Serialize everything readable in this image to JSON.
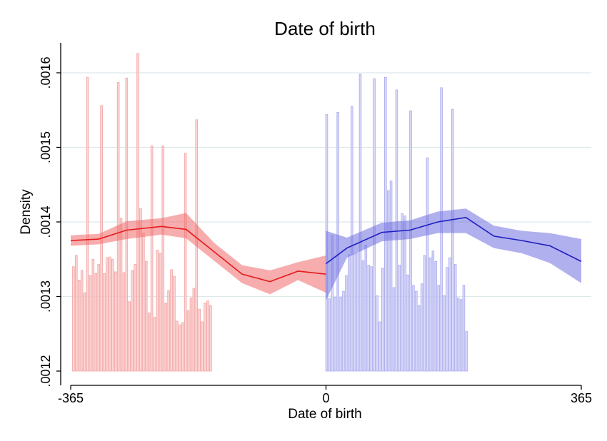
{
  "chart_data": {
    "type": "bar",
    "title": "Date of birth",
    "xlabel": "Date of birth",
    "ylabel": "Density",
    "xlim": [
      -365,
      365
    ],
    "ylim": [
      0.0012,
      0.00162
    ],
    "x_ticks": [
      {
        "value": -365,
        "label": "-365"
      },
      {
        "value": 0,
        "label": "0"
      },
      {
        "value": 365,
        "label": "365"
      }
    ],
    "y_ticks": [
      {
        "value": 0.0012,
        "label": ".0012"
      },
      {
        "value": 0.0013,
        "label": ".0013"
      },
      {
        "value": 0.0014,
        "label": ".0014"
      },
      {
        "value": 0.0015,
        "label": ".0015"
      },
      {
        "value": 0.0016,
        "label": ".0016"
      }
    ],
    "grid": true,
    "legend": "none",
    "colors": {
      "left_bar_fill": "#fbd0d0",
      "left_bar_stroke": "#f3a0a0",
      "left_line": "#e41a1c",
      "left_band": "#f06a6a",
      "right_bar_fill": "#d3d3f7",
      "right_bar_stroke": "#a9a9ee",
      "right_line": "#1d1dbf",
      "right_band": "#6f6fe0",
      "grid": "#dde8ec"
    },
    "histogram": {
      "bin_width": 4,
      "left_start": -361,
      "left_values": [
        0.00134,
        0.001355,
        0.001322,
        0.001335,
        0.001305,
        0.001594,
        0.001328,
        0.00135,
        0.001331,
        0.001343,
        0.001556,
        0.001331,
        0.001352,
        0.001353,
        0.00135,
        0.001333,
        0.001587,
        0.001405,
        0.001332,
        0.001593,
        0.001293,
        0.001335,
        0.001343,
        0.001626,
        0.001418,
        0.001385,
        0.001347,
        0.001278,
        0.001502,
        0.001272,
        0.001362,
        0.001358,
        0.001502,
        0.001291,
        0.001308,
        0.001336,
        0.001327,
        0.001267,
        0.001262,
        0.001265,
        0.001492,
        0.001281,
        0.001298,
        0.001311,
        0.001537,
        0.001283,
        0.001266,
        0.001291,
        0.001294,
        0.001288
      ],
      "right_start": 1,
      "right_values": [
        0.001544,
        0.001297,
        0.001382,
        0.001299,
        0.001547,
        0.001299,
        0.001307,
        0.001328,
        0.001356,
        0.001555,
        0.001357,
        0.001358,
        0.001598,
        0.001348,
        0.001369,
        0.001342,
        0.00134,
        0.001592,
        0.001301,
        0.001266,
        0.001338,
        0.001594,
        0.001442,
        0.001455,
        0.001312,
        0.001577,
        0.001342,
        0.001411,
        0.001408,
        0.001329,
        0.001549,
        0.001315,
        0.001307,
        0.001288,
        0.001317,
        0.001355,
        0.001486,
        0.001352,
        0.001361,
        0.001347,
        0.001315,
        0.00158,
        0.001301,
        0.001339,
        0.001352,
        0.001551,
        0.001343,
        0.001298,
        0.001296,
        0.001315,
        0.001253
      ]
    },
    "series": [
      {
        "x": [
          -365,
          -325,
          -285,
          -235,
          -200,
          -160,
          -120,
          -80,
          -40,
          0
        ],
        "y": [
          0.001375,
          0.001377,
          0.001389,
          0.001394,
          0.00139,
          0.00136,
          0.00133,
          0.00132,
          0.001334,
          0.00133
        ],
        "ci_low": [
          0.001368,
          0.00137,
          0.001377,
          0.001383,
          0.001378,
          0.001348,
          0.001318,
          0.001303,
          0.001322,
          0.001305
        ],
        "ci_high": [
          0.001382,
          0.001384,
          0.001401,
          0.001405,
          0.001412,
          0.001372,
          0.001342,
          0.001335,
          0.001346,
          0.001355
        ]
      },
      {
        "x": [
          0,
          30,
          80,
          120,
          160,
          200,
          240,
          280,
          320,
          365
        ],
        "y": [
          0.001344,
          0.001365,
          0.001386,
          0.001389,
          0.0014,
          0.001406,
          0.001381,
          0.001375,
          0.001368,
          0.001347
        ],
        "ci_low": [
          0.001295,
          0.001352,
          0.001374,
          0.001377,
          0.001385,
          0.001385,
          0.001365,
          0.001358,
          0.001345,
          0.001318
        ],
        "ci_high": [
          0.001388,
          0.001379,
          0.001399,
          0.001402,
          0.001414,
          0.001418,
          0.001395,
          0.001388,
          0.001385,
          0.001377
        ]
      }
    ]
  }
}
